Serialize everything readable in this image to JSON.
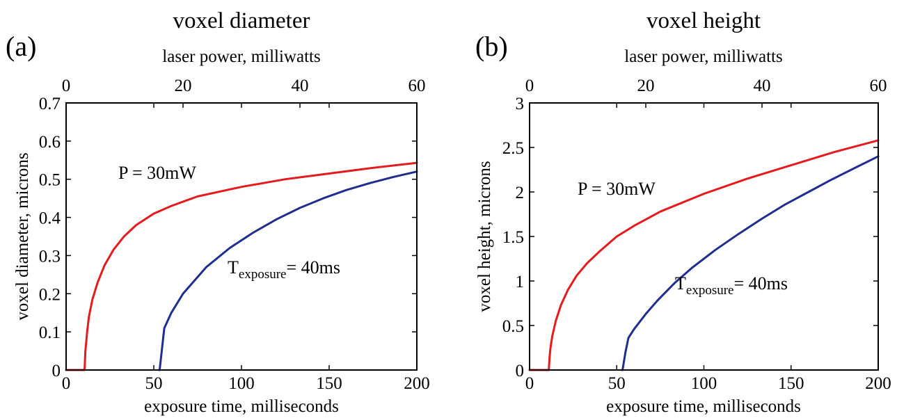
{
  "chart_data": [
    {
      "type": "line",
      "panel_label": "(a)",
      "title": "voxel diameter",
      "xlabel": "exposure time, milliseconds",
      "ylabel": "voxel diameter, microns",
      "xlim": [
        0,
        200
      ],
      "ylim": [
        0,
        0.7
      ],
      "xticks": [
        "0",
        "50",
        "100",
        "150",
        "200"
      ],
      "yticks": [
        "0",
        "0.1",
        "0.2",
        "0.3",
        "0.4",
        "0.5",
        "0.6",
        "0.7"
      ],
      "top_axis": {
        "label": "laser power, milliwatts",
        "lim": [
          0,
          60
        ],
        "ticks": [
          "0",
          "20",
          "40",
          "60"
        ]
      },
      "grid": false,
      "series": [
        {
          "name": "P = 30mW",
          "axis": "bottom",
          "color": "#e41a1c",
          "x": [
            0,
            10.5,
            11,
            12,
            13,
            15,
            18,
            22,
            27,
            33,
            40,
            50,
            60,
            75,
            100,
            125,
            150,
            175,
            200
          ],
          "y": [
            0,
            0,
            0.05,
            0.1,
            0.14,
            0.185,
            0.23,
            0.275,
            0.315,
            0.35,
            0.38,
            0.41,
            0.43,
            0.455,
            0.48,
            0.5,
            0.515,
            0.53,
            0.543
          ]
        },
        {
          "name": "T_exposure = 40ms",
          "axis": "top",
          "color": "#1f2d8f",
          "x": [
            15.9,
            16.0,
            16.8,
            18,
            20,
            24,
            28,
            32,
            36,
            40,
            44,
            48,
            52,
            56,
            60
          ],
          "y": [
            0,
            0,
            0.11,
            0.15,
            0.2,
            0.27,
            0.32,
            0.36,
            0.395,
            0.425,
            0.45,
            0.472,
            0.49,
            0.506,
            0.52
          ]
        }
      ],
      "annotations": {
        "p_label": "P = 30mW",
        "t_main": "T",
        "t_sub": "exposure",
        "t_rest": "= 40ms"
      }
    },
    {
      "type": "line",
      "panel_label": "(b)",
      "title": "voxel height",
      "xlabel": "exposure time, milliseconds",
      "ylabel": "voxel height, microns",
      "xlim": [
        0,
        200
      ],
      "ylim": [
        0,
        3
      ],
      "xticks": [
        "0",
        "50",
        "100",
        "150",
        "200"
      ],
      "yticks": [
        "0",
        "0.5",
        "1",
        "1.5",
        "2",
        "2.5",
        "3"
      ],
      "top_axis": {
        "label": "laser power, milliwatts",
        "lim": [
          0,
          60
        ],
        "ticks": [
          "0",
          "20",
          "40",
          "60"
        ]
      },
      "grid": false,
      "series": [
        {
          "name": "P = 30mW",
          "axis": "bottom",
          "color": "#e41a1c",
          "x": [
            0,
            11,
            11.5,
            12,
            13,
            15,
            18,
            22,
            27,
            33,
            40,
            50,
            60,
            75,
            100,
            125,
            150,
            175,
            200
          ],
          "y": [
            0,
            0,
            0.15,
            0.25,
            0.38,
            0.55,
            0.73,
            0.9,
            1.06,
            1.2,
            1.33,
            1.5,
            1.62,
            1.78,
            1.98,
            2.15,
            2.3,
            2.45,
            2.58
          ]
        },
        {
          "name": "T_exposure = 40ms",
          "axis": "top",
          "color": "#1f2d8f",
          "x": [
            15.9,
            16.0,
            16.5,
            17,
            18,
            20,
            22,
            25,
            28,
            32,
            36,
            40,
            44,
            48,
            52,
            56,
            60
          ],
          "y": [
            0,
            0,
            0.2,
            0.36,
            0.46,
            0.63,
            0.78,
            0.98,
            1.15,
            1.35,
            1.53,
            1.7,
            1.86,
            2.0,
            2.14,
            2.27,
            2.4
          ]
        }
      ],
      "annotations": {
        "p_label": "P = 30mW",
        "t_main": "T",
        "t_sub": "exposure",
        "t_rest": "= 40ms"
      }
    }
  ]
}
